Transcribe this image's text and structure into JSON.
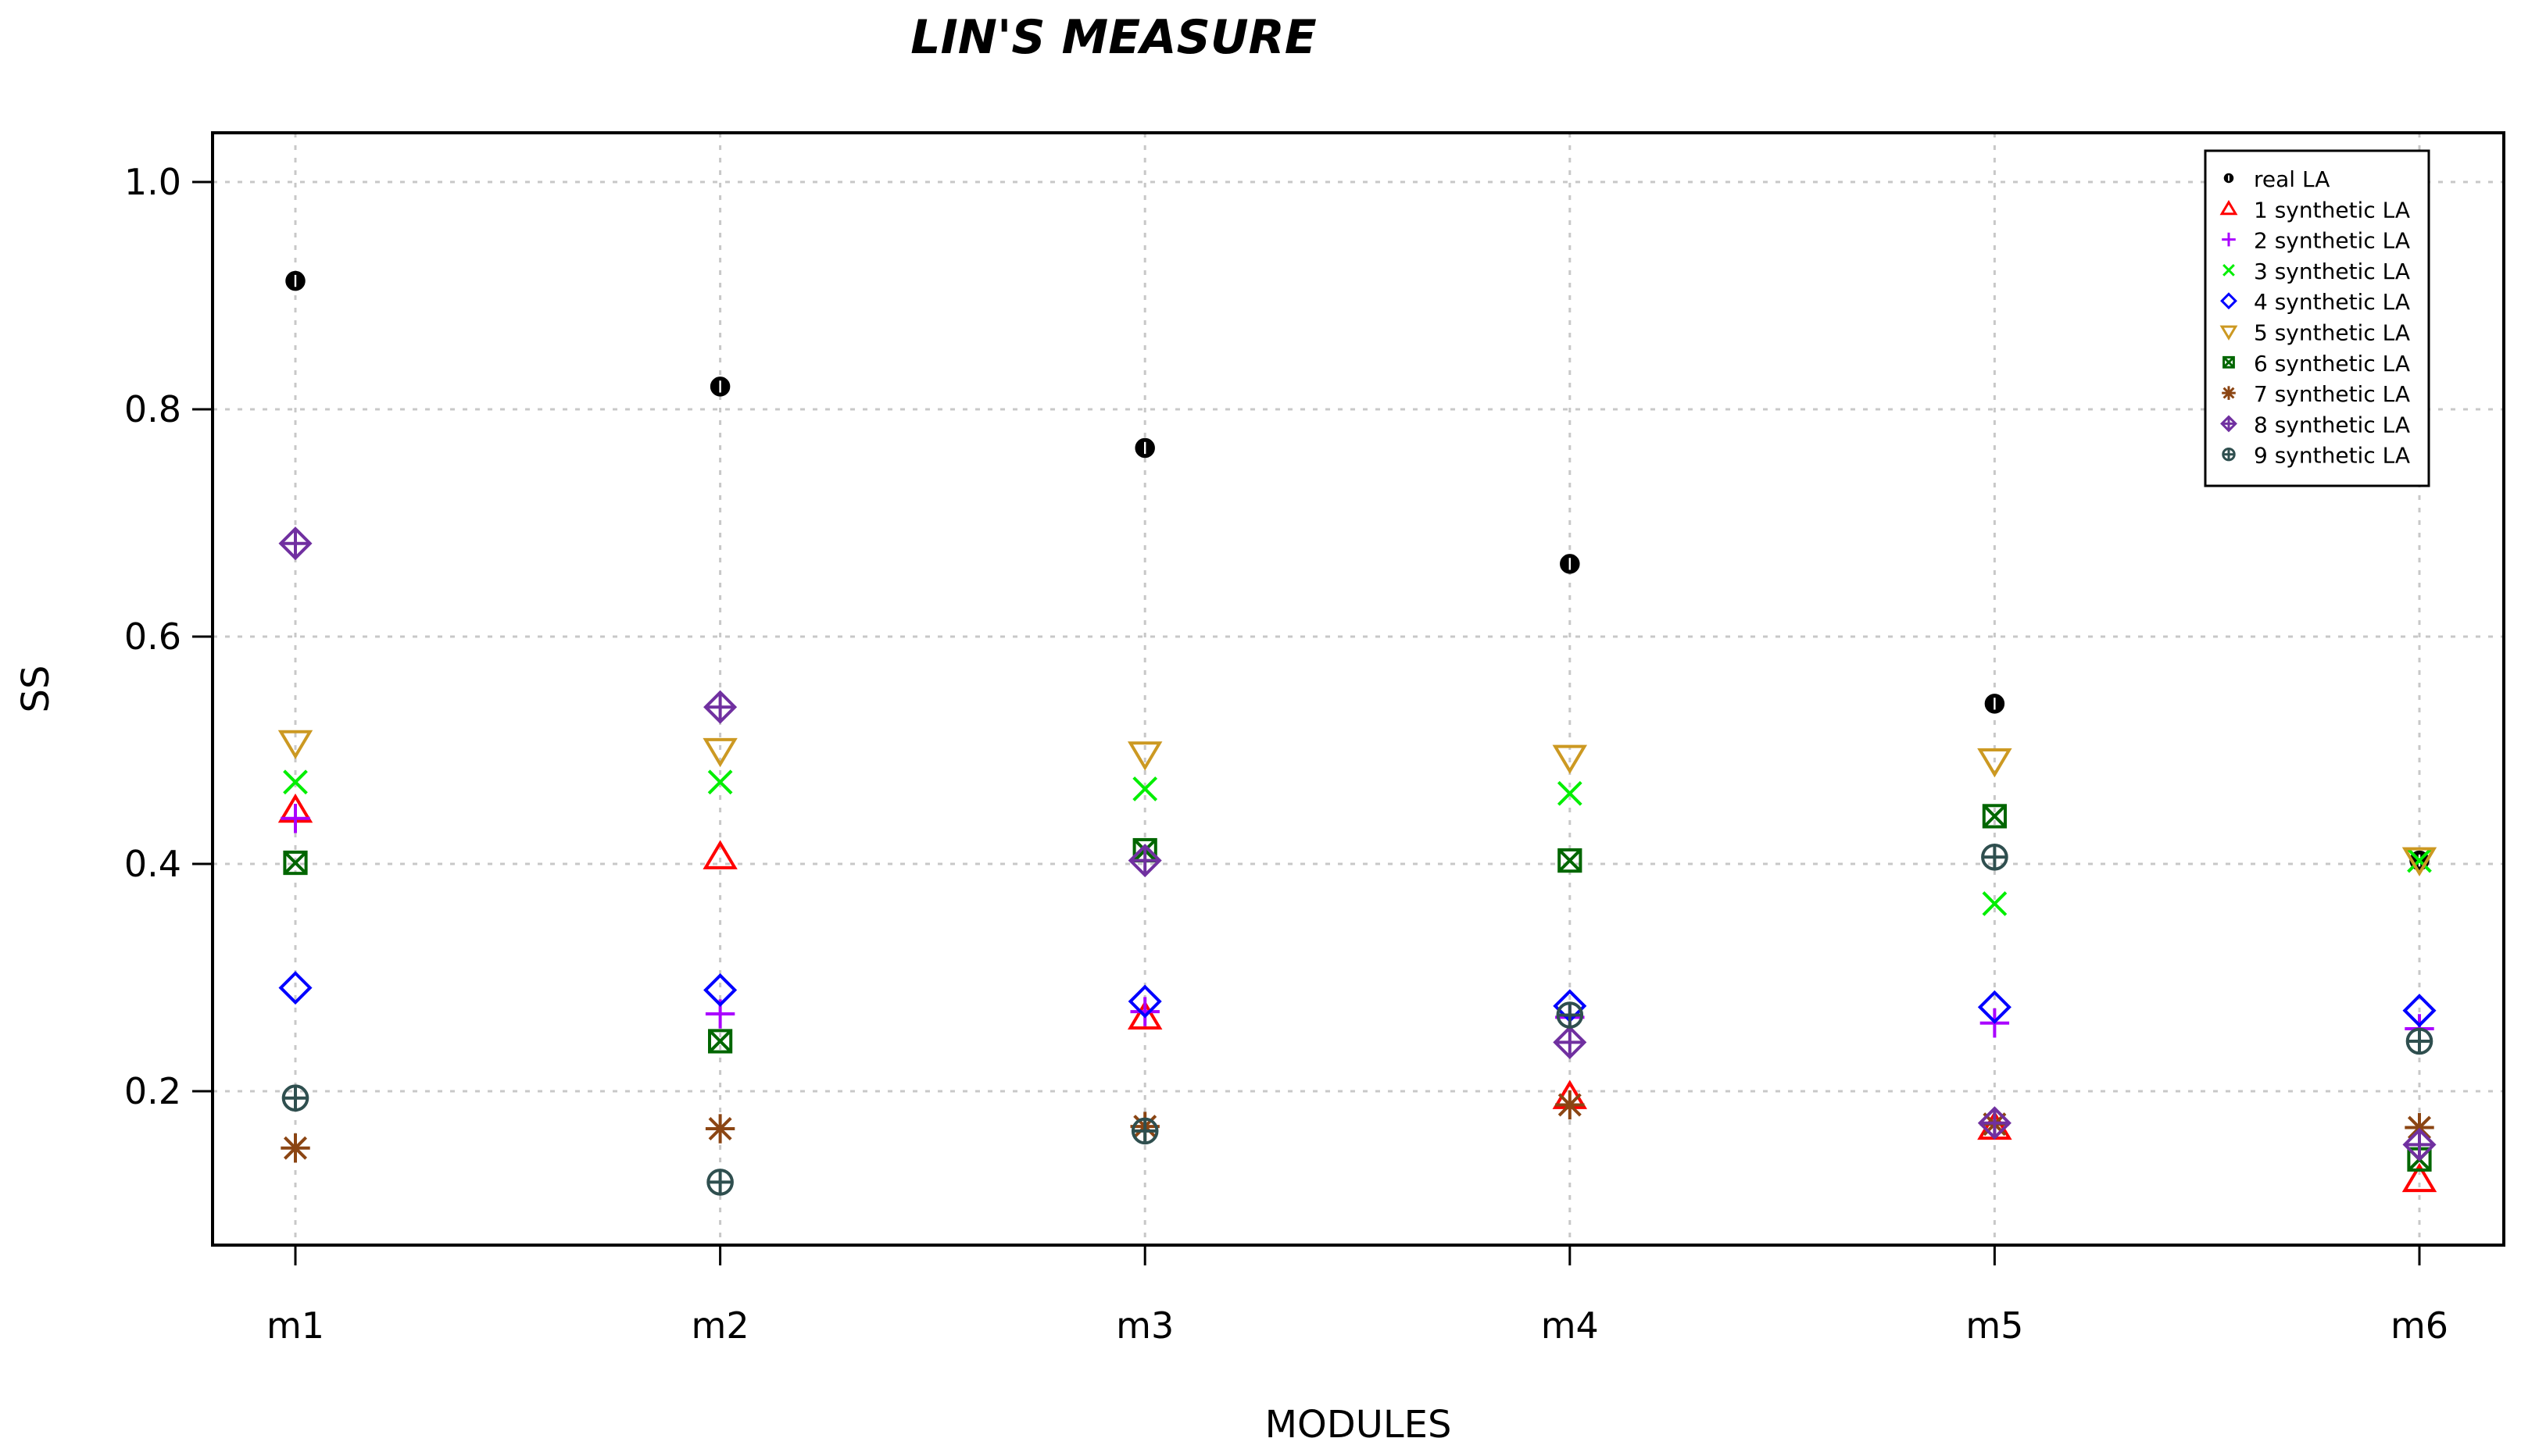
{
  "chart_data": {
    "type": "scatter",
    "title": "LIN'S MEASURE",
    "xlabel": "MODULES",
    "ylabel": "SS",
    "categories": [
      "m1",
      "m2",
      "m3",
      "m4",
      "m5",
      "m6"
    ],
    "ylim": [
      0.05,
      1.04
    ],
    "yticks": [
      0.2,
      0.4,
      0.6,
      0.8,
      1.0
    ],
    "ytick_labels": [
      "0.2",
      "0.4",
      "0.6",
      "0.8",
      "1.0"
    ],
    "grid": true,
    "legend_position": "top-right",
    "series": [
      {
        "name": "real LA",
        "color": "#000000",
        "marker": "filled-circle",
        "values": [
          0.913,
          0.82,
          0.766,
          0.664,
          0.541,
          0.403
        ]
      },
      {
        "name": "1 synthetic LA",
        "color": "#ff0000",
        "marker": "triangle-up",
        "values": [
          0.447,
          0.406,
          0.265,
          0.195,
          0.168,
          0.122
        ]
      },
      {
        "name": "2 synthetic LA",
        "color": "#aa00ff",
        "marker": "plus",
        "values": [
          0.44,
          0.268,
          0.27,
          0.265,
          0.26,
          0.255
        ]
      },
      {
        "name": "3 synthetic LA",
        "color": "#00ee00",
        "marker": "x",
        "values": [
          0.472,
          0.472,
          0.466,
          0.462,
          0.365,
          0.403
        ]
      },
      {
        "name": "4 synthetic LA",
        "color": "#0000ff",
        "marker": "diamond",
        "values": [
          0.291,
          0.289,
          0.279,
          0.275,
          0.274,
          0.271
        ]
      },
      {
        "name": "5 synthetic LA",
        "color": "#cc9922",
        "marker": "triangle-down",
        "values": [
          0.507,
          0.5,
          0.497,
          0.494,
          0.491,
          0.404
        ]
      },
      {
        "name": "6 synthetic LA",
        "color": "#006600",
        "marker": "square-x",
        "values": [
          0.401,
          0.244,
          0.412,
          0.403,
          0.442,
          0.14
        ]
      },
      {
        "name": "7 synthetic LA",
        "color": "#8b4513",
        "marker": "asterisk",
        "values": [
          0.15,
          0.167,
          0.169,
          0.188,
          0.171,
          0.168
        ]
      },
      {
        "name": "8 synthetic LA",
        "color": "#7030a0",
        "marker": "diamond-plus",
        "values": [
          0.682,
          0.538,
          0.403,
          0.243,
          0.172,
          0.153
        ]
      },
      {
        "name": "9 synthetic LA",
        "color": "#2f4f4f",
        "marker": "circle-plus",
        "values": [
          0.194,
          0.12,
          0.165,
          0.267,
          0.406,
          0.244
        ]
      }
    ]
  }
}
